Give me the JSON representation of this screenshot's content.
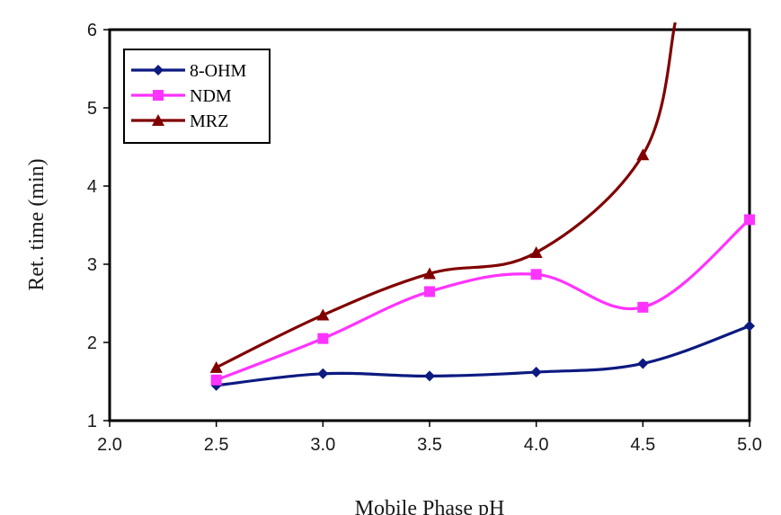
{
  "chart_data": {
    "type": "line",
    "title": "",
    "xlabel": "Mobile Phase pH",
    "ylabel": "Ret. time (min)",
    "xlim": [
      2.0,
      5.0
    ],
    "ylim": [
      1,
      6
    ],
    "x_ticks": [
      "2.0",
      "2.5",
      "3.0",
      "3.5",
      "4.0",
      "4.5",
      "5.0"
    ],
    "y_ticks": [
      "1",
      "2",
      "3",
      "4",
      "5",
      "6"
    ],
    "x": [
      2.5,
      3.0,
      3.5,
      4.0,
      4.5,
      5.0
    ],
    "grid": false,
    "legend_position": "top-left",
    "series": [
      {
        "name": "8-OHM",
        "color": "#0d1a80",
        "marker": "diamond",
        "values": [
          1.45,
          1.6,
          1.57,
          1.62,
          1.73,
          2.21
        ]
      },
      {
        "name": "NDM",
        "color": "#ff33ff",
        "marker": "square",
        "values": [
          1.52,
          2.05,
          2.65,
          2.87,
          2.45,
          3.57
        ]
      },
      {
        "name": "MRZ",
        "color": "#800000",
        "marker": "triangle",
        "values": [
          1.68,
          2.35,
          2.88,
          3.15,
          4.4,
          null
        ]
      }
    ]
  }
}
